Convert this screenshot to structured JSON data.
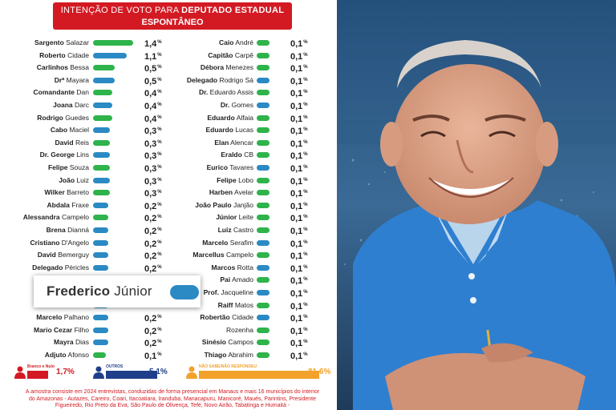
{
  "header": {
    "title_prefix": "INTENÇÃO DE VOTO PARA",
    "title_emphasis": "DEPUTADO ESTADUAL",
    "subtitle": "ESPONTÂNEO"
  },
  "chart_data": {
    "type": "bar",
    "title": "INTENÇÃO DE VOTO PARA DEPUTADO ESTADUAL ESPONTÂNEO",
    "unit": "%",
    "left_column": [
      {
        "first": "Sargento",
        "last": "Salazar",
        "value": 1.4,
        "label": "1,4",
        "color": "#2fb34b"
      },
      {
        "first": "Roberto",
        "last": "Cidade",
        "value": 1.1,
        "label": "1,1",
        "color": "#2b8ac3"
      },
      {
        "first": "Carlinhos",
        "last": "Bessa",
        "value": 0.5,
        "label": "0,5",
        "color": "#2fb34b"
      },
      {
        "first": "Drª",
        "last": "Mayara",
        "value": 0.5,
        "label": "0,5",
        "color": "#2b8ac3"
      },
      {
        "first": "Comandante",
        "last": "Dan",
        "value": 0.4,
        "label": "0,4",
        "color": "#2fb34b"
      },
      {
        "first": "Joana",
        "last": "Darc",
        "value": 0.4,
        "label": "0,4",
        "color": "#2b8ac3"
      },
      {
        "first": "Rodrigo",
        "last": "Guedes",
        "value": 0.4,
        "label": "0,4",
        "color": "#2fb34b"
      },
      {
        "first": "Cabo",
        "last": "Maciel",
        "value": 0.3,
        "label": "0,3",
        "color": "#2b8ac3"
      },
      {
        "first": "David",
        "last": "Reis",
        "value": 0.3,
        "label": "0,3",
        "color": "#2fb34b"
      },
      {
        "first": "Dr. George",
        "last": "Lins",
        "value": 0.3,
        "label": "0,3",
        "color": "#2b8ac3"
      },
      {
        "first": "Felipe",
        "last": "Souza",
        "value": 0.3,
        "label": "0,3",
        "color": "#2fb34b"
      },
      {
        "first": "João",
        "last": "Luiz",
        "value": 0.3,
        "label": "0,3",
        "color": "#2b8ac3"
      },
      {
        "first": "Wilker",
        "last": "Barreto",
        "value": 0.3,
        "label": "0,3",
        "color": "#2fb34b"
      },
      {
        "first": "Abdala",
        "last": "Fraxe",
        "value": 0.2,
        "label": "0,2",
        "color": "#2b8ac3"
      },
      {
        "first": "Alessandra",
        "last": "Campelo",
        "value": 0.2,
        "label": "0,2",
        "color": "#2fb34b"
      },
      {
        "first": "Brena",
        "last": "Dianná",
        "value": 0.2,
        "label": "0,2",
        "color": "#2b8ac3"
      },
      {
        "first": "Cristiano",
        "last": "D'Angelo",
        "value": 0.2,
        "label": "0,2",
        "color": "#2b8ac3"
      },
      {
        "first": "David",
        "last": "Bemerguy",
        "value": 0.2,
        "label": "0,2",
        "color": "#2b8ac3"
      },
      {
        "first": "Delegado",
        "last": "Péricles",
        "value": 0.2,
        "label": "0,2",
        "color": "#2b8ac3"
      },
      {
        "first": "",
        "last": "",
        "value": 0.2,
        "label": "",
        "color": "#2b8ac3"
      },
      {
        "first": "",
        "last": "",
        "value": 0.2,
        "label": "",
        "color": "#2b8ac3"
      },
      {
        "first": "",
        "last": "",
        "value": 0.2,
        "label": "",
        "color": "#2b8ac3"
      },
      {
        "first": "Marcelo",
        "last": "Palhano",
        "value": 0.2,
        "label": "0,2",
        "color": "#2b8ac3"
      },
      {
        "first": "Mario Cezar",
        "last": "Filho",
        "value": 0.2,
        "label": "0,2",
        "color": "#2b8ac3"
      },
      {
        "first": "Mayra",
        "last": "Dias",
        "value": 0.2,
        "label": "0,2",
        "color": "#2b8ac3"
      },
      {
        "first": "Adjuto",
        "last": "Afonso",
        "value": 0.1,
        "label": "0,1",
        "color": "#2fb34b"
      }
    ],
    "right_column": [
      {
        "first": "Caio",
        "last": "André",
        "value": 0.1,
        "label": "0,1",
        "color": "#2fb34b"
      },
      {
        "first": "Capitão",
        "last": "Carpê",
        "value": 0.1,
        "label": "0,1",
        "color": "#2fb34b"
      },
      {
        "first": "Débora",
        "last": "Menezes",
        "value": 0.1,
        "label": "0,1",
        "color": "#2fb34b"
      },
      {
        "first": "Delegado",
        "last": "Rodrigo Sá",
        "value": 0.1,
        "label": "0,1",
        "color": "#2b8ac3"
      },
      {
        "first": "Dr.",
        "last": "Eduardo Assis",
        "value": 0.1,
        "label": "0,1",
        "color": "#2fb34b"
      },
      {
        "first": "Dr.",
        "last": "Gomes",
        "value": 0.1,
        "label": "0,1",
        "color": "#2b8ac3"
      },
      {
        "first": "Eduardo",
        "last": "Alfaia",
        "value": 0.1,
        "label": "0,1",
        "color": "#2fb34b"
      },
      {
        "first": "Eduardo",
        "last": "Lucas",
        "value": 0.1,
        "label": "0,1",
        "color": "#2fb34b"
      },
      {
        "first": "Elan",
        "last": "Alencar",
        "value": 0.1,
        "label": "0,1",
        "color": "#2fb34b"
      },
      {
        "first": "Eraldo",
        "last": "CB",
        "value": 0.1,
        "label": "0,1",
        "color": "#2fb34b"
      },
      {
        "first": "Eurico",
        "last": "Tavares",
        "value": 0.1,
        "label": "0,1",
        "color": "#2b8ac3"
      },
      {
        "first": "Felipe",
        "last": "Lobo",
        "value": 0.1,
        "label": "0,1",
        "color": "#2fb34b"
      },
      {
        "first": "Harben",
        "last": "Avelar",
        "value": 0.1,
        "label": "0,1",
        "color": "#2fb34b"
      },
      {
        "first": "João Paulo",
        "last": "Janjão",
        "value": 0.1,
        "label": "0,1",
        "color": "#2fb34b"
      },
      {
        "first": "Júnior",
        "last": "Leite",
        "value": 0.1,
        "label": "0,1",
        "color": "#2fb34b"
      },
      {
        "first": "Luiz",
        "last": "Castro",
        "value": 0.1,
        "label": "0,1",
        "color": "#2fb34b"
      },
      {
        "first": "Marcelo",
        "last": "Serafim",
        "value": 0.1,
        "label": "0,1",
        "color": "#2b8ac3"
      },
      {
        "first": "Marcellus",
        "last": "Campelo",
        "value": 0.1,
        "label": "0,1",
        "color": "#2fb34b"
      },
      {
        "first": "Marcos",
        "last": "Rotta",
        "value": 0.1,
        "label": "0,1",
        "color": "#2b8ac3"
      },
      {
        "first": "Pai",
        "last": "Amado",
        "value": 0.1,
        "label": "0,1",
        "color": "#2fb34b"
      },
      {
        "first": "Prof.",
        "last": "Jacqueline",
        "value": 0.1,
        "label": "0,1",
        "color": "#2b8ac3"
      },
      {
        "first": "Raiff",
        "last": "Matos",
        "value": 0.1,
        "label": "0,1",
        "color": "#2fb34b"
      },
      {
        "first": "Robertão",
        "last": "Cidade",
        "value": 0.1,
        "label": "0,1",
        "color": "#2b8ac3"
      },
      {
        "first": "",
        "last": "Rozenha",
        "value": 0.1,
        "label": "0,1",
        "color": "#2fb34b"
      },
      {
        "first": "Sinésio",
        "last": "Campos",
        "value": 0.1,
        "label": "0,1",
        "color": "#2fb34b"
      },
      {
        "first": "Thiago",
        "last": "Abrahim",
        "value": 0.1,
        "label": "0,1",
        "color": "#2fb34b"
      }
    ],
    "summary": [
      {
        "label": "Branco e Nulo",
        "value": 1.7,
        "text": "1,7%",
        "color": "#d31a23"
      },
      {
        "label": "OUTROS",
        "value": 5.1,
        "text": "5,1%",
        "color": "#1f3f8a"
      },
      {
        "label": "NÃO SABE/NÃO RESPONDEU",
        "value": 81.6,
        "text": "81,6%",
        "color": "#f2a12a"
      }
    ]
  },
  "overlay": {
    "first": "Frederico",
    "last": "Júnior",
    "color": "#2b8ac3"
  },
  "footnote": "A amostra consiste em 2024 entrevistas, conduzidas de forma presencial em Manaus e mais 16 municípios do interior do Amazonas - Autazes, Careiro, Coari, Itacoatiara, Iranduba, Manacapuru, Manicoré, Maués, Parintins, Presidente Figueiredo, Rio Preto da Eva, São Paulo de Olivença, Tefé, Novo Airão, Tabatinga e Humaitá -",
  "colors": {
    "accent": "#d31a23",
    "green": "#2fb34b",
    "blue": "#2b8ac3"
  }
}
